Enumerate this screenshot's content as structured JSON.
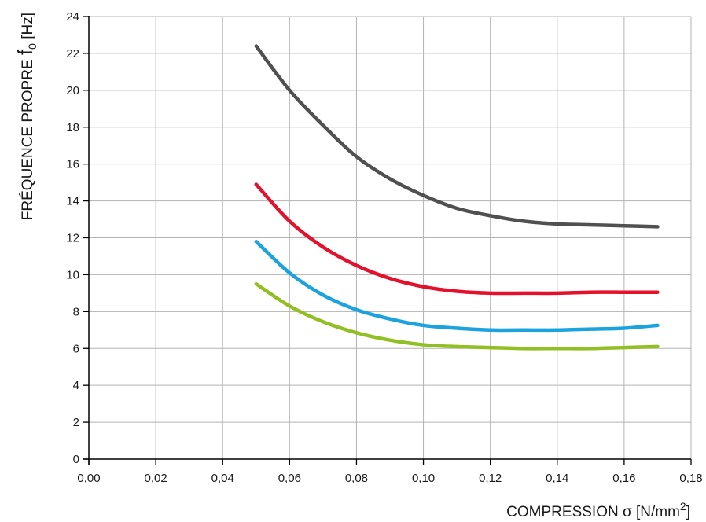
{
  "chart_data": {
    "type": "line",
    "xlabel": {
      "prefix": "COMPRESSION σ [N/mm",
      "sup": "2",
      "suffix": "]"
    },
    "ylabel": {
      "prefix": "FRÉQUENCE PROPRE ",
      "symbol": "f",
      "sub": "0",
      "suffix": " [Hz]"
    },
    "xlim": [
      0,
      0.18
    ],
    "ylim": [
      0,
      24
    ],
    "x_ticks": [
      0,
      0.02,
      0.04,
      0.06,
      0.08,
      0.1,
      0.12,
      0.14,
      0.16,
      0.18
    ],
    "x_tick_labels": [
      "0,00",
      "0,02",
      "0,04",
      "0,06",
      "0,08",
      "0,10",
      "0,12",
      "0,14",
      "0,16",
      "0,18"
    ],
    "y_ticks": [
      0,
      2,
      4,
      6,
      8,
      10,
      12,
      14,
      16,
      18,
      20,
      22,
      24
    ],
    "y_tick_labels": [
      "0",
      "2",
      "4",
      "6",
      "8",
      "10",
      "12",
      "14",
      "16",
      "18",
      "20",
      "22",
      "24"
    ],
    "grid": true,
    "legend": "none",
    "x": [
      0.05,
      0.06,
      0.07,
      0.08,
      0.09,
      0.1,
      0.11,
      0.12,
      0.13,
      0.14,
      0.15,
      0.16,
      0.17
    ],
    "series": [
      {
        "color": "#505050",
        "values": [
          22.4,
          20.0,
          18.1,
          16.4,
          15.2,
          14.3,
          13.6,
          13.2,
          12.9,
          12.75,
          12.7,
          12.65,
          12.6
        ]
      },
      {
        "color": "#e3112b",
        "values": [
          14.9,
          12.9,
          11.5,
          10.5,
          9.8,
          9.35,
          9.1,
          9.0,
          9.0,
          9.0,
          9.05,
          9.05,
          9.05
        ]
      },
      {
        "color": "#1aa3de",
        "values": [
          11.8,
          10.1,
          8.9,
          8.1,
          7.6,
          7.25,
          7.1,
          7.0,
          7.0,
          7.0,
          7.05,
          7.1,
          7.25
        ]
      },
      {
        "color": "#92c024",
        "values": [
          9.5,
          8.3,
          7.45,
          6.85,
          6.45,
          6.2,
          6.1,
          6.05,
          6.0,
          6.0,
          6.0,
          6.05,
          6.1
        ]
      }
    ]
  }
}
